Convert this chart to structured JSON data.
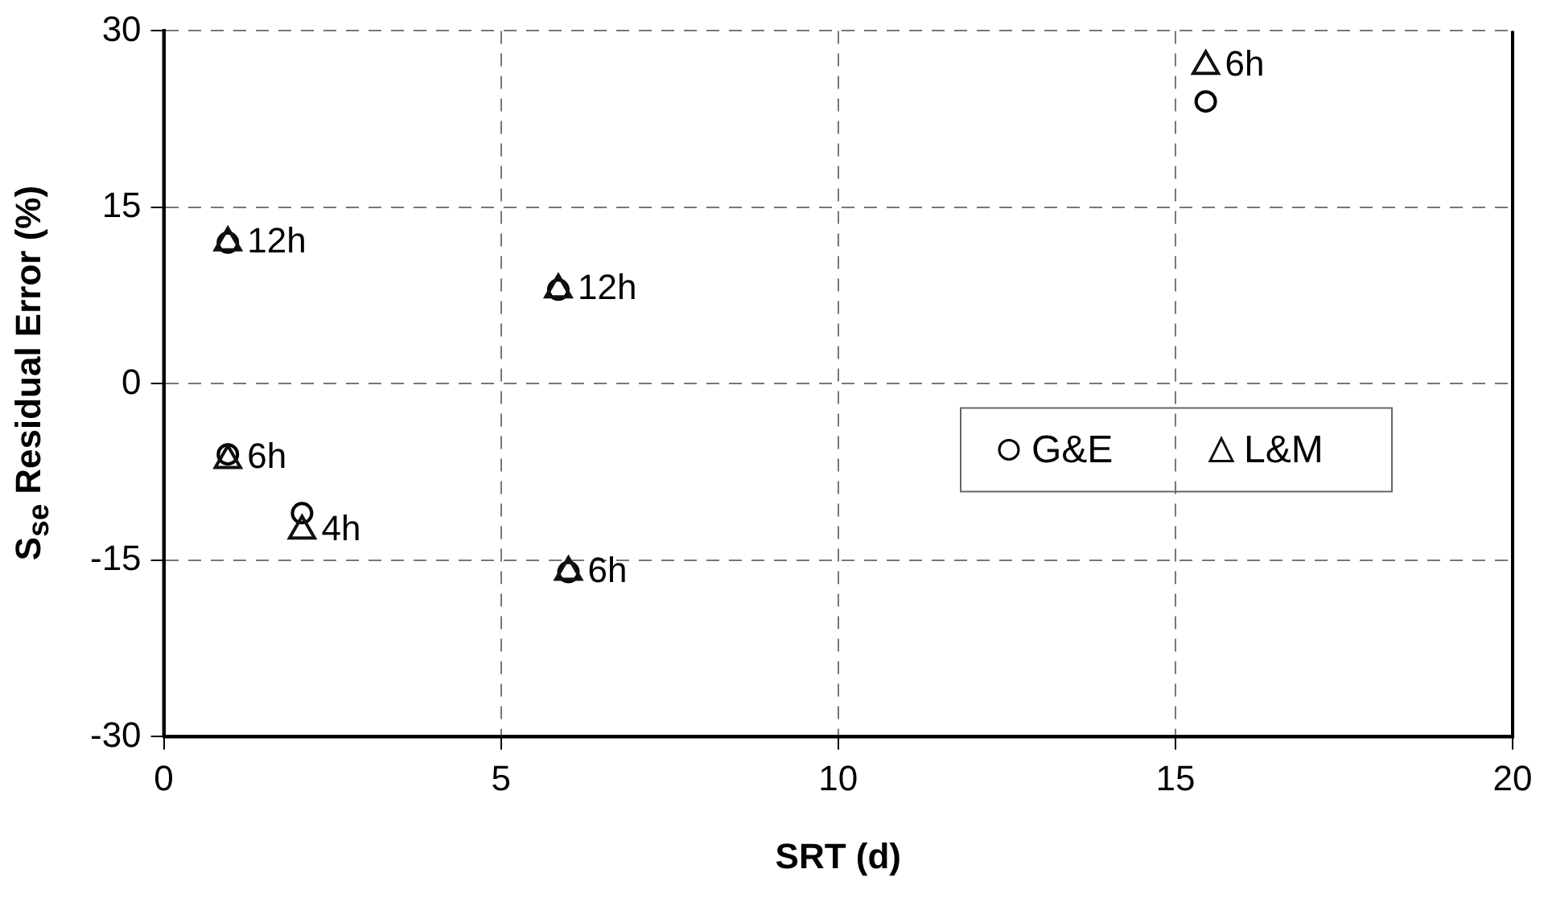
{
  "chart_data": {
    "type": "scatter",
    "xlabel": "SRT (d)",
    "ylabel": "S$_{se}$ Residual Error (%)",
    "series": [
      {
        "name": "G&E",
        "color": "#000000",
        "marker": "circle",
        "x": [
          0.95,
          0.95,
          2.05,
          5.85,
          6.0,
          15.45
        ],
        "values": [
          12,
          -6,
          -11,
          8,
          -16,
          24
        ]
      },
      {
        "name": "L&M",
        "color": "#111111",
        "marker": "triangle",
        "x": [
          0.95,
          0.95,
          2.05,
          5.85,
          6.0,
          15.45
        ],
        "values": [
          12,
          -6.5,
          -12.5,
          8,
          -16,
          27
        ]
      }
    ],
    "annotations": [
      {
        "text": "12h",
        "x": 0.95,
        "y": 12
      },
      {
        "text": "6h",
        "x": 0.95,
        "y": -6.3
      },
      {
        "text": "4h",
        "x": 2.05,
        "y": -12.5
      },
      {
        "text": "12h",
        "x": 5.85,
        "y": 8
      },
      {
        "text": "6h",
        "x": 6.0,
        "y": -16
      },
      {
        "text": "6h",
        "x": 15.45,
        "y": 27
      }
    ],
    "xlim": [
      0,
      20
    ],
    "xticks": [
      0,
      5,
      10,
      15,
      20
    ],
    "ylim": [
      -30,
      30
    ],
    "yticks": [
      -30,
      -15,
      0,
      15,
      30
    ],
    "grid": true,
    "legend": "right",
    "line_style": "dashed"
  }
}
